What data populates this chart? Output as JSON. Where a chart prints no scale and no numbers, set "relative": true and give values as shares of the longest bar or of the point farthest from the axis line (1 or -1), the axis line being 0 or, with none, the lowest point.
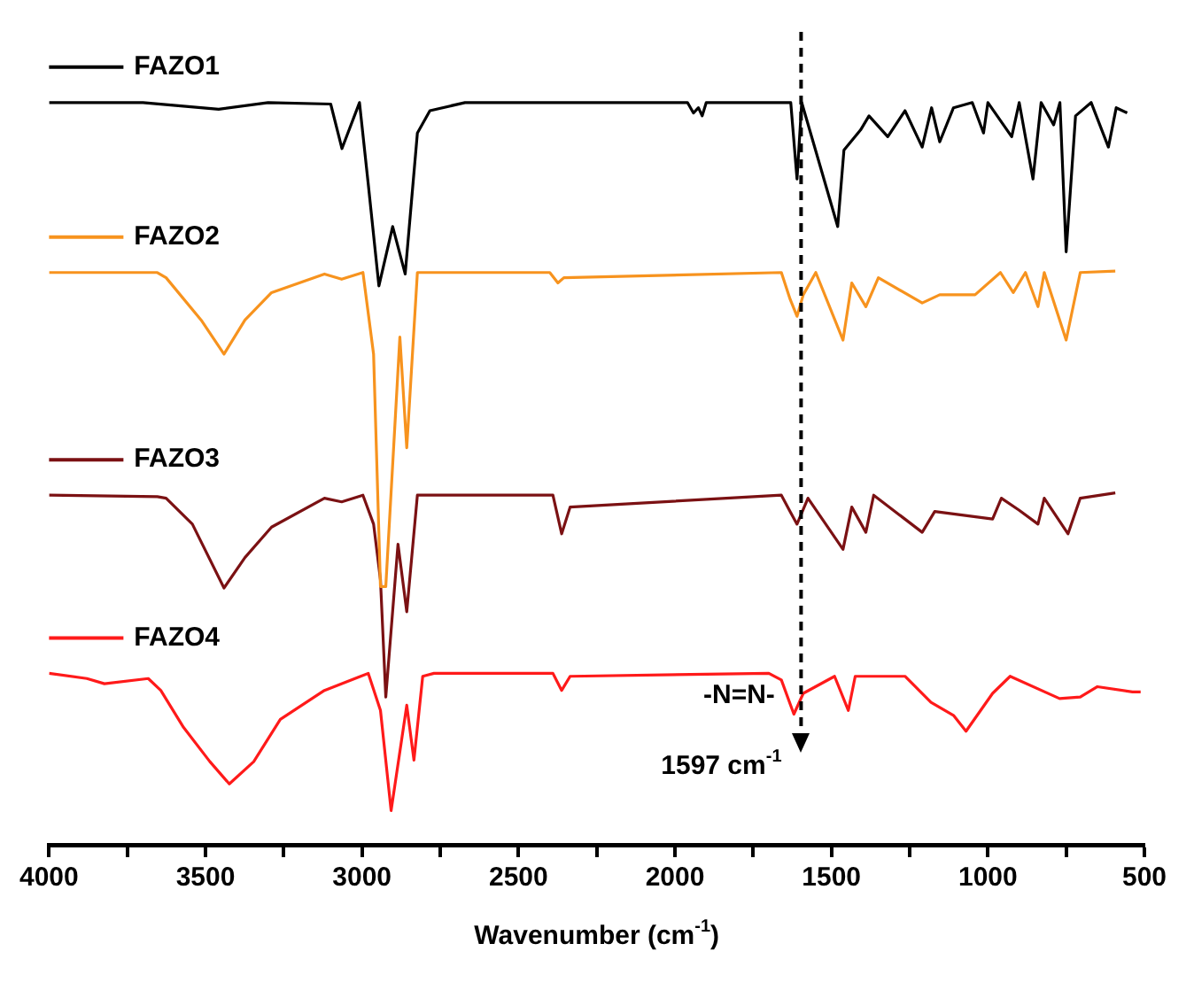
{
  "chart_data": {
    "type": "line",
    "xlabel": "Wavenumber (cm$^{-1}$)",
    "relative": true,
    "xlim": [
      4000,
      500
    ],
    "xticks": [
      4000,
      {
        "value": 3750,
        "label": null
      },
      3500,
      {
        "value": 3250,
        "label": null
      },
      3000,
      {
        "value": 2750,
        "label": null
      },
      2500,
      {
        "value": 2250,
        "label": null
      },
      2000,
      {
        "value": 1750,
        "label": null
      },
      1500,
      {
        "value": 1250,
        "label": null
      },
      1000,
      {
        "value": 750,
        "label": null
      },
      500
    ],
    "grid": false,
    "marker": "none",
    "line_style": "solid",
    "ref_lines": [
      {
        "axis": "x",
        "value": 1597,
        "label": "-N=N-",
        "line_style": "dashed",
        "color": "#000000"
      }
    ],
    "annotations": [
      "1597 cm$^{-1}$"
    ],
    "legend": "left",
    "series": [
      {
        "name": "FAZO1",
        "color": "#000000",
        "x": [
          4000,
          3700,
          3458,
          3300,
          3100,
          3064,
          3008,
          2980,
          2946,
          2902,
          2862,
          2823,
          2783,
          2671,
          1960,
          1941,
          1925,
          1913,
          1900,
          1630,
          1610,
          1595,
          1480,
          1460,
          1407,
          1380,
          1320,
          1265,
          1210,
          1180,
          1154,
          1110,
          1050,
          1014,
          1000,
          924,
          900,
          856,
          830,
          790,
          770,
          750,
          720,
          670,
          615,
          590,
          555
        ],
        "values": [
          1.0,
          1.0,
          0.991,
          1.0,
          0.998,
          0.938,
          1.0,
          0.89,
          0.753,
          0.833,
          0.769,
          0.959,
          0.989,
          1.0,
          1.0,
          0.986,
          0.993,
          0.982,
          1.0,
          1.0,
          0.897,
          1.0,
          0.833,
          0.936,
          0.963,
          0.982,
          0.954,
          0.989,
          0.94,
          0.993,
          0.947,
          0.993,
          1.0,
          0.959,
          1.0,
          0.954,
          1.0,
          0.897,
          1.0,
          0.97,
          1.0,
          0.799,
          0.982,
          1.0,
          0.94,
          0.993,
          0.986
        ]
      },
      {
        "name": "FAZO2",
        "color": "#f7931e",
        "x": [
          4000,
          3654,
          3626,
          3514,
          3441,
          3374,
          3289,
          3120,
          3065,
          2997,
          2963,
          2941,
          2924,
          2879,
          2857,
          2823,
          2400,
          2374,
          2355,
          1660,
          1632,
          1610,
          1590,
          1550,
          1463,
          1435,
          1390,
          1350,
          1210,
          1154,
          1041,
          960,
          919,
          880,
          840,
          820,
          750,
          705,
          593
        ],
        "values": [
          0.771,
          0.771,
          0.764,
          0.707,
          0.661,
          0.707,
          0.744,
          0.769,
          0.762,
          0.771,
          0.661,
          0.348,
          0.348,
          0.684,
          0.535,
          0.771,
          0.771,
          0.757,
          0.764,
          0.771,
          0.735,
          0.712,
          0.741,
          0.771,
          0.68,
          0.757,
          0.725,
          0.764,
          0.73,
          0.741,
          0.741,
          0.771,
          0.744,
          0.771,
          0.725,
          0.771,
          0.68,
          0.771,
          0.773
        ]
      },
      {
        "name": "FAZO3",
        "color": "#7b1113",
        "x": [
          4000,
          3654,
          3626,
          3542,
          3441,
          3374,
          3289,
          3120,
          3065,
          2997,
          2963,
          2941,
          2924,
          2885,
          2857,
          2823,
          2390,
          2362,
          2335,
          1660,
          1632,
          1610,
          1575,
          1463,
          1435,
          1390,
          1365,
          1210,
          1170,
          985,
          957,
          901,
          840,
          820,
          744,
          705,
          593
        ],
        "values": [
          0.471,
          0.469,
          0.467,
          0.432,
          0.346,
          0.387,
          0.428,
          0.467,
          0.462,
          0.471,
          0.432,
          0.357,
          0.199,
          0.405,
          0.314,
          0.471,
          0.471,
          0.419,
          0.455,
          0.471,
          0.449,
          0.432,
          0.467,
          0.398,
          0.455,
          0.421,
          0.471,
          0.421,
          0.449,
          0.439,
          0.467,
          0.451,
          0.432,
          0.467,
          0.419,
          0.467,
          0.474
        ]
      },
      {
        "name": "FAZO4",
        "color": "#ff1a1a",
        "x": [
          4000,
          3879,
          3823,
          3683,
          3643,
          3570,
          3486,
          3424,
          3346,
          3261,
          3120,
          2980,
          2941,
          2907,
          2857,
          2834,
          2806,
          2770,
          2390,
          2362,
          2335,
          1700,
          1660,
          1620,
          1590,
          1490,
          1446,
          1424,
          1265,
          1182,
          1109,
          1070,
          985,
          929,
          771,
          705,
          650,
          538,
          512
        ],
        "values": [
          0.231,
          0.224,
          0.217,
          0.224,
          0.208,
          0.158,
          0.112,
          0.082,
          0.112,
          0.169,
          0.208,
          0.231,
          0.181,
          0.046,
          0.188,
          0.114,
          0.227,
          0.231,
          0.231,
          0.208,
          0.227,
          0.231,
          0.222,
          0.176,
          0.204,
          0.227,
          0.181,
          0.227,
          0.227,
          0.192,
          0.174,
          0.153,
          0.204,
          0.227,
          0.197,
          0.199,
          0.213,
          0.206,
          0.206
        ]
      }
    ]
  }
}
